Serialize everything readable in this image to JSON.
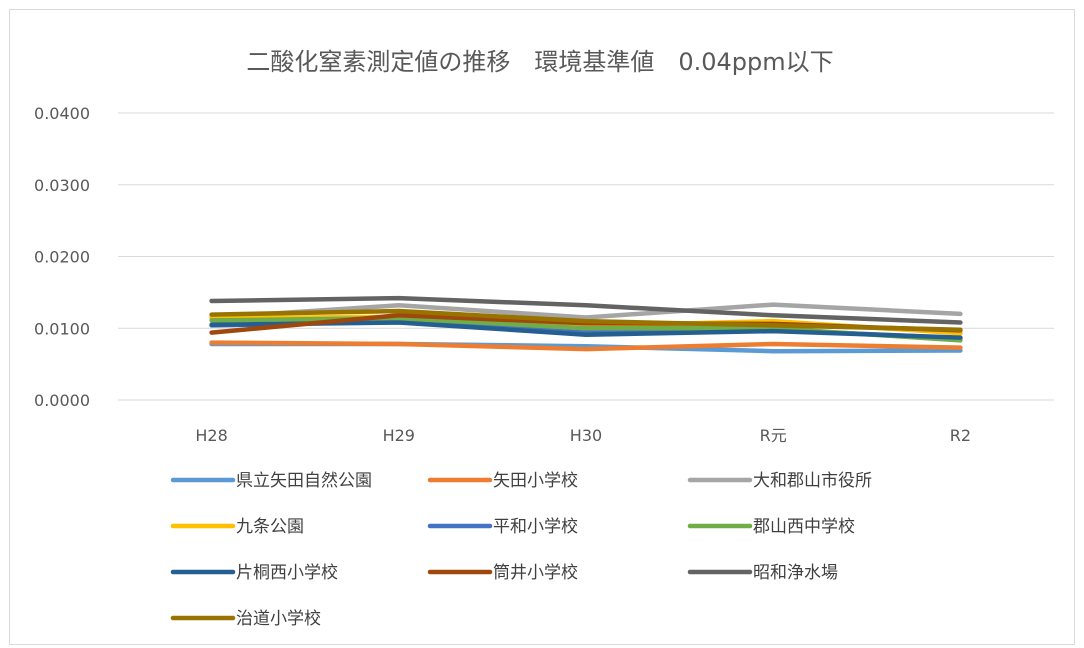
{
  "chart_data": {
    "type": "line",
    "title": "二酸化窒素測定値の推移　環境基準値　0.04ppm以下",
    "xlabel": "",
    "ylabel": "",
    "categories": [
      "H28",
      "H29",
      "H30",
      "R元",
      "R2"
    ],
    "ylim": [
      0,
      0.04
    ],
    "yticks": [
      "0.0000",
      "0.0100",
      "0.0200",
      "0.0300",
      "0.0400"
    ],
    "grid": true,
    "legend_position": "bottom",
    "series": [
      {
        "name": "県立矢田自然公園",
        "color": "#5b9bd5",
        "values": [
          0.0078,
          0.0078,
          0.0075,
          0.0068,
          0.0069
        ]
      },
      {
        "name": "矢田小学校",
        "color": "#ed7d31",
        "values": [
          0.008,
          0.0078,
          0.0071,
          0.0078,
          0.0073
        ]
      },
      {
        "name": "大和郡山市役所",
        "color": "#a5a5a5",
        "values": [
          0.0115,
          0.0132,
          0.0115,
          0.0133,
          0.012
        ]
      },
      {
        "name": "九条公園",
        "color": "#ffc000",
        "values": [
          0.0114,
          0.0116,
          0.0103,
          0.011,
          0.0093
        ]
      },
      {
        "name": "平和小学校",
        "color": "#4472c4",
        "values": [
          0.0104,
          0.0109,
          0.0094,
          0.0098,
          0.0086
        ]
      },
      {
        "name": "郡山西中学校",
        "color": "#70ad47",
        "values": [
          0.0111,
          0.0114,
          0.01,
          0.01,
          0.0083
        ]
      },
      {
        "name": "片桐西小学校",
        "color": "#255e91",
        "values": [
          0.0105,
          0.0108,
          0.0091,
          0.0096,
          0.0087
        ]
      },
      {
        "name": "筒井小学校",
        "color": "#9e480e",
        "values": [
          0.0094,
          0.0118,
          0.0107,
          0.0106,
          0.0097
        ]
      },
      {
        "name": "昭和浄水場",
        "color": "#636363",
        "values": [
          0.0138,
          0.0142,
          0.0132,
          0.0118,
          0.0108
        ]
      },
      {
        "name": "治道小学校",
        "color": "#997300",
        "values": [
          0.0119,
          0.0124,
          0.011,
          0.0104,
          0.0098
        ]
      }
    ]
  }
}
